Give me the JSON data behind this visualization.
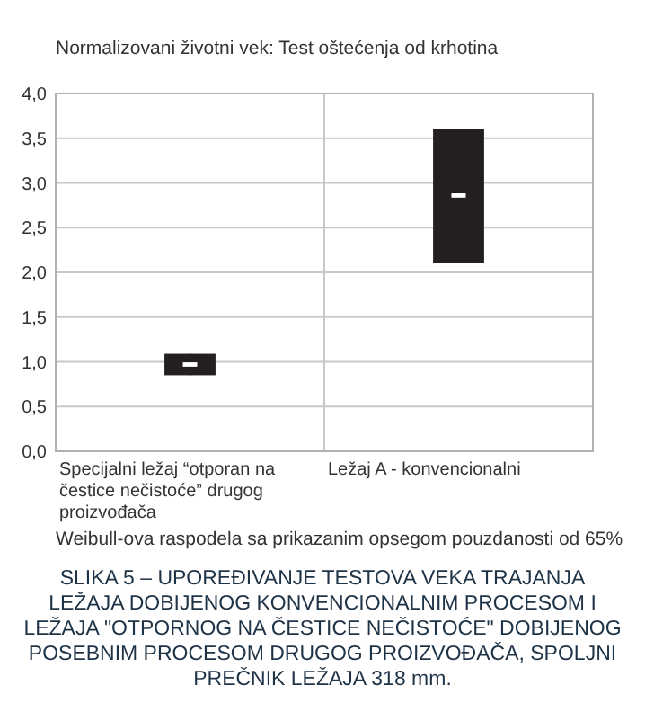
{
  "chart_data": {
    "type": "box",
    "title": "Normalizovani životni vek: Test oštećenja od krhotina",
    "categories": [
      "Specijalni ležaj “otporan na čestice nečistoće” drugog proizvođača",
      "Ležaj A - konvencionalni"
    ],
    "boxes": [
      {
        "low": 0.85,
        "q1": 0.85,
        "median": 0.97,
        "q3": 1.09,
        "high": 1.09
      },
      {
        "low": 2.11,
        "q1": 2.11,
        "median": 2.86,
        "q3": 3.6,
        "high": 3.6
      }
    ],
    "color": "#231f20",
    "ylim": [
      0,
      4
    ],
    "yticks": [
      {
        "value": 0,
        "label": "0,0"
      },
      {
        "value": 0.5,
        "label": "0,5"
      },
      {
        "value": 1,
        "label": "1,0"
      },
      {
        "value": 1.5,
        "label": "1,5"
      },
      {
        "value": 2,
        "label": "2,0"
      },
      {
        "value": 2.5,
        "label": "2,5"
      },
      {
        "value": 3,
        "label": "3,0"
      },
      {
        "value": 3.5,
        "label": "3,5"
      },
      {
        "value": 4,
        "label": "4,0"
      }
    ],
    "grid": true,
    "annotations": [
      "Weibull-ova raspodela sa prikazanim opsegom pouzdanosti od 65%",
      "SLIKA 5 – UPOREĐIVANJE TESTOVA VEKA TRAJANJA LEŽAJA DOBIJENOG KONVENCIONALNIM PROCESOM I LEŽAJA \"OTPORNOG NA ČESTICE NEČISTOĆE\" DOBIJENOG POSEBNIM PROCESOM DRUGOG PROIZVOĐAČA, SPOLJNI PREČNIK LEŽAJA 318 mm."
    ]
  }
}
